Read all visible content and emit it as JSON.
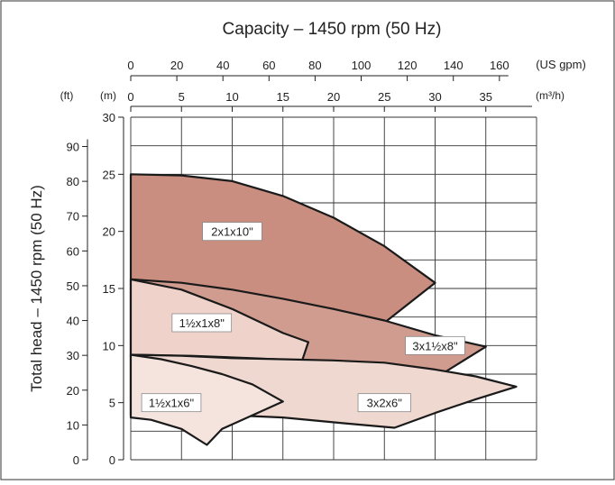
{
  "chart_data": {
    "type": "area",
    "title": "Capacity – 1450 rpm (50 Hz)",
    "ylabel": "Total head – 1450 rpm (50 Hz)",
    "x_primary": {
      "unit_label": "(m³/h)",
      "range": [
        0,
        40
      ],
      "ticks": [
        0,
        5,
        10,
        15,
        20,
        25,
        30,
        35
      ]
    },
    "x_secondary": {
      "unit_label": "(US gpm)",
      "ticks": [
        0,
        20,
        40,
        60,
        80,
        100,
        120,
        140,
        160
      ]
    },
    "y_primary": {
      "unit_label": "(m)",
      "range": [
        0,
        30
      ],
      "ticks": [
        0,
        5,
        10,
        15,
        20,
        25,
        30
      ]
    },
    "y_secondary": {
      "unit_label": "(ft)",
      "ticks": [
        0,
        10,
        20,
        30,
        40,
        50,
        60,
        70,
        80,
        90
      ]
    },
    "grid": true,
    "series": [
      {
        "name": "2x1x10\"",
        "label": "2x1x10\"",
        "color": "#c98e80",
        "points": [
          [
            0,
            25.0
          ],
          [
            5,
            24.9
          ],
          [
            10,
            24.4
          ],
          [
            15,
            23.1
          ],
          [
            20,
            21.2
          ],
          [
            25,
            18.7
          ],
          [
            30,
            15.5
          ],
          [
            25,
            12.0
          ],
          [
            20,
            13.2
          ],
          [
            15,
            14.0
          ],
          [
            10,
            14.8
          ],
          [
            5,
            15.4
          ],
          [
            0,
            15.8
          ]
        ],
        "label_pos": [
          10,
          20
        ]
      },
      {
        "name": "3x1½x8\"",
        "label": "3x1½x8\"",
        "color": "#cf9c8f",
        "points": [
          [
            0,
            15.8
          ],
          [
            5,
            15.5
          ],
          [
            10,
            14.9
          ],
          [
            15,
            14.1
          ],
          [
            20,
            13.2
          ],
          [
            25,
            12.2
          ],
          [
            30,
            10.9
          ],
          [
            35,
            9.9
          ],
          [
            31,
            7.7
          ],
          [
            25,
            8.3
          ],
          [
            20,
            8.6
          ],
          [
            15,
            8.8
          ],
          [
            10,
            8.9
          ],
          [
            5,
            9.0
          ],
          [
            0,
            9.0
          ]
        ],
        "label_pos": [
          30,
          10
        ]
      },
      {
        "name": "1½x1x8\"",
        "label": "1½x1x8\"",
        "color": "#efd3cb",
        "points": [
          [
            0,
            15.8
          ],
          [
            5,
            14.9
          ],
          [
            10,
            13.2
          ],
          [
            15,
            11.1
          ],
          [
            17.5,
            10.3
          ],
          [
            16.9,
            8.7
          ],
          [
            12,
            8.9
          ],
          [
            6,
            9.1
          ],
          [
            0,
            9.2
          ]
        ],
        "label_pos": [
          7,
          12
        ]
      },
      {
        "name": "3x2x6\"",
        "label": "3x2x6\"",
        "color": "#eed8d0",
        "points": [
          [
            0,
            9.2
          ],
          [
            5,
            9.1
          ],
          [
            10,
            8.9
          ],
          [
            15,
            8.8
          ],
          [
            20,
            8.7
          ],
          [
            25,
            8.5
          ],
          [
            30,
            7.9
          ],
          [
            34,
            7.3
          ],
          [
            38,
            6.4
          ],
          [
            34,
            5.3
          ],
          [
            30,
            4.1
          ],
          [
            26,
            2.8
          ],
          [
            21,
            3.2
          ],
          [
            15,
            3.7
          ],
          [
            10,
            3.9
          ],
          [
            5,
            3.9
          ],
          [
            0,
            3.9
          ]
        ],
        "label_pos": [
          25,
          5
        ]
      },
      {
        "name": "1½x1x6\"",
        "label": "1½x1x6\"",
        "color": "#f5e4de",
        "points": [
          [
            0,
            9.2
          ],
          [
            3,
            8.8
          ],
          [
            6,
            8.2
          ],
          [
            9,
            7.5
          ],
          [
            12,
            6.6
          ],
          [
            15,
            5.1
          ],
          [
            12,
            3.9
          ],
          [
            9,
            2.7
          ],
          [
            7.5,
            1.3
          ],
          [
            5,
            2.7
          ],
          [
            2,
            3.5
          ],
          [
            0,
            3.7
          ]
        ],
        "label_pos": [
          4,
          5
        ]
      }
    ]
  }
}
